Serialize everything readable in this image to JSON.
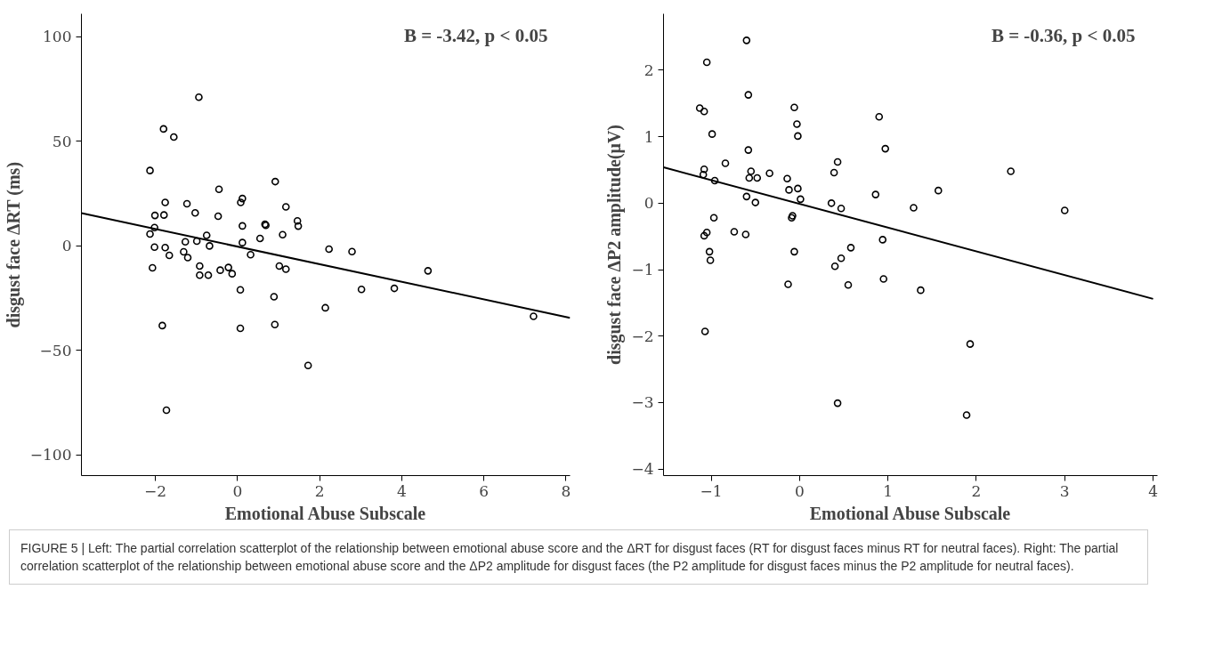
{
  "chart_data": [
    {
      "type": "scatter",
      "xlabel": "Emotional Abuse Subscale",
      "ylabel": "disgust face ΔRT (ms)",
      "grid": false,
      "annotations": [
        "B = -3.42, p < 0.05"
      ],
      "xlim": [
        -3.8,
        8.1
      ],
      "ylim": [
        -110,
        111
      ],
      "xticks": [
        {
          "value": -2,
          "label": "−2"
        },
        0,
        2,
        4,
        6,
        8
      ],
      "yticks": [
        {
          "value": -100,
          "label": "−100"
        },
        {
          "value": -50,
          "label": "−50"
        },
        0,
        50,
        100
      ],
      "series": [
        {
          "color": "#000000",
          "marker": "circle",
          "x": [
            -0.94,
            -1.8,
            -1.55,
            -2.13,
            -0.45,
            0.92,
            0.12,
            0.08,
            -1.76,
            -1.23,
            -1.03,
            -2.01,
            -1.79,
            -0.47,
            1.18,
            0.12,
            0.67,
            0.69,
            1.46,
            1.48,
            -2.02,
            -2.13,
            -0.75,
            1.1,
            -1.27,
            -0.99,
            -0.68,
            0.12,
            0.55,
            -2.02,
            -1.76,
            -1.66,
            -1.31,
            -1.21,
            0.32,
            2.23,
            2.79,
            -2.07,
            -0.92,
            -0.92,
            -0.71,
            -0.42,
            -0.22,
            -0.13,
            1.02,
            1.18,
            4.64,
            0.07,
            0.89,
            3.02,
            3.82,
            2.14,
            -1.83,
            0.07,
            0.91,
            7.21,
            1.72,
            -1.73
          ],
          "values": [
            71.1,
            55.9,
            52.0,
            36.0,
            27.0,
            30.7,
            22.6,
            20.7,
            20.7,
            20.1,
            15.7,
            14.5,
            14.7,
            14.1,
            18.6,
            9.5,
            10.3,
            9.8,
            11.9,
            9.4,
            8.7,
            5.6,
            5.0,
            5.3,
            1.9,
            2.2,
            -0.1,
            1.5,
            3.5,
            -0.7,
            -0.9,
            -4.6,
            -2.9,
            -5.7,
            -4.3,
            -1.6,
            -2.8,
            -10.6,
            -9.7,
            -14.1,
            -14.1,
            -11.7,
            -10.4,
            -13.4,
            -9.7,
            -11.2,
            -12.0,
            -21.1,
            -24.4,
            -20.9,
            -20.4,
            -29.7,
            -38.2,
            -39.5,
            -37.7,
            -33.8,
            -57.3,
            -78.7
          ]
        },
        {
          "type": "line",
          "color": "#000000",
          "marker": "none",
          "x": [
            -3.8,
            8.1
          ],
          "values": [
            15.6,
            -34.5
          ]
        }
      ]
    },
    {
      "type": "scatter",
      "xlabel": "Emotional Abuse Subscale",
      "ylabel": "disgust face ΔP2 amplitude(μV)",
      "grid": false,
      "annotations": [
        "B = -0.36, p < 0.05",
        "FIGURE 5 | Left: The partial correlation scatterplot of the relationship between emotional abuse score and the ΔRT for disgust faces (RT for disgust faces minus RT for neutral faces). Right: The partial correlation scatterplot of the relationship between emotional abuse score and the ΔP2 amplitude for disgust faces (the P2 amplitude for disgust faces minus the P2 amplitude for neutral faces)."
      ],
      "xlim": [
        -1.54,
        4.05
      ],
      "ylim": [
        -4.1,
        2.85
      ],
      "xticks": [
        {
          "value": -1,
          "label": "−1"
        },
        0,
        1,
        2,
        3,
        4
      ],
      "yticks": [
        {
          "value": -4,
          "label": "−4"
        },
        {
          "value": -3,
          "label": "−3"
        },
        {
          "value": -2,
          "label": "−2"
        },
        {
          "value": -1,
          "label": "−1"
        },
        0,
        1,
        2
      ],
      "series": [
        {
          "color": "#000000",
          "marker": "circle",
          "x": [
            -0.6,
            -1.05,
            -0.58,
            -1.13,
            -1.08,
            -0.06,
            -0.03,
            -0.02,
            0.9,
            -0.99,
            -0.58,
            0.97,
            -0.84,
            -1.08,
            -1.09,
            -0.96,
            -0.55,
            -0.57,
            -0.48,
            -0.34,
            -0.14,
            -0.12,
            -0.02,
            0.01,
            0.43,
            0.39,
            2.39,
            1.57,
            0.86,
            -0.6,
            -0.5,
            0.36,
            0.47,
            1.29,
            3.0,
            -0.97,
            -0.08,
            -0.09,
            -1.05,
            -1.08,
            -0.74,
            -0.61,
            -0.06,
            0.58,
            0.94,
            0.47,
            0.4,
            -1.02,
            -1.01,
            -0.13,
            0.55,
            0.95,
            1.37,
            -1.07,
            1.93,
            0.43,
            1.89
          ],
          "values": [
            2.45,
            2.12,
            1.63,
            1.43,
            1.38,
            1.44,
            1.19,
            1.01,
            1.3,
            1.04,
            0.8,
            0.82,
            0.6,
            0.51,
            0.43,
            0.34,
            0.48,
            0.38,
            0.38,
            0.45,
            0.37,
            0.2,
            0.22,
            0.06,
            0.62,
            0.46,
            0.48,
            0.19,
            0.13,
            0.1,
            0.01,
            0.0,
            -0.08,
            -0.07,
            -0.11,
            -0.22,
            -0.19,
            -0.22,
            -0.44,
            -0.49,
            -0.43,
            -0.47,
            -0.73,
            -0.67,
            -0.55,
            -0.83,
            -0.95,
            -0.73,
            -0.86,
            -1.22,
            -1.23,
            -1.14,
            -1.31,
            -1.93,
            -2.12,
            -3.01,
            -3.19
          ]
        },
        {
          "type": "line",
          "color": "#000000",
          "marker": "none",
          "x": [
            -1.54,
            4.0
          ],
          "values": [
            0.54,
            -1.44
          ]
        }
      ]
    }
  ]
}
